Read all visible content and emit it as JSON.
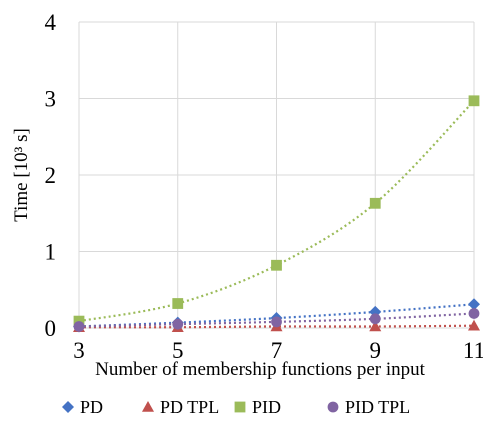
{
  "chart_data": {
    "type": "line",
    "xlabel": "Number of membership functions per input",
    "ylabel": "Time [10³ s]",
    "x": [
      3,
      5,
      7,
      9,
      11
    ],
    "x_ticks": [
      "3",
      "5",
      "7",
      "9",
      "11"
    ],
    "y_ticks": [
      "0",
      "1",
      "2",
      "3",
      "4"
    ],
    "xlim": [
      3,
      11
    ],
    "ylim": [
      0,
      4
    ],
    "grid": "vertical and horizontal, light gray",
    "legend_position": "bottom",
    "series": [
      {
        "name": "PD",
        "marker": "diamond",
        "color": "#4472C4",
        "values": [
          0.02,
          0.07,
          0.13,
          0.21,
          0.31
        ]
      },
      {
        "name": "PD TPL",
        "marker": "triangle",
        "color": "#C0504D",
        "values": [
          0.01,
          0.01,
          0.02,
          0.02,
          0.03
        ]
      },
      {
        "name": "PID",
        "marker": "square",
        "color": "#9BBB59",
        "values": [
          0.09,
          0.32,
          0.82,
          1.63,
          2.97
        ]
      },
      {
        "name": "PID TPL",
        "marker": "circle",
        "color": "#8064A2",
        "values": [
          0.02,
          0.05,
          0.08,
          0.12,
          0.19
        ]
      }
    ]
  }
}
